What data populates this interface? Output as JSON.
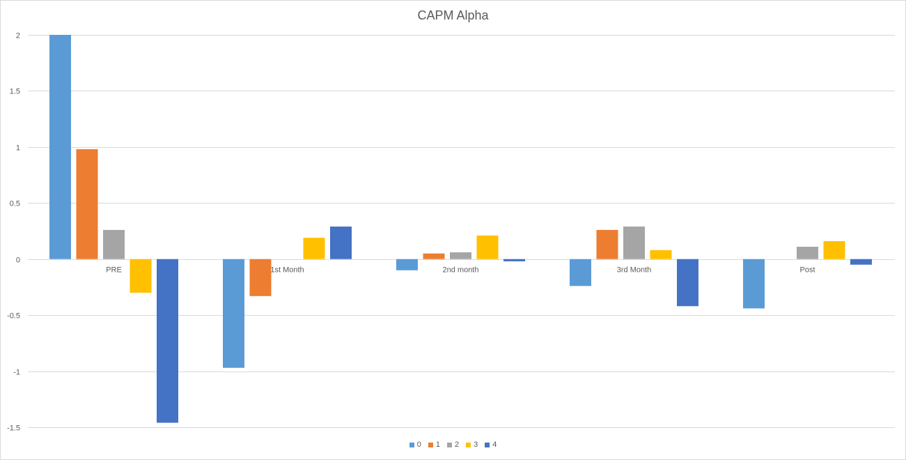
{
  "chart_data": {
    "type": "bar",
    "title": "CAPM Alpha",
    "xlabel": "",
    "ylabel": "",
    "categories": [
      "PRE",
      "1st Month",
      "2nd month",
      "3rd Month",
      "Post"
    ],
    "series": [
      {
        "name": "0",
        "color": "#5B9BD5",
        "values": [
          2.0,
          -0.97,
          -0.1,
          -0.24,
          -0.44
        ]
      },
      {
        "name": "1",
        "color": "#ED7D31",
        "values": [
          0.98,
          -0.33,
          0.05,
          0.26,
          0.0
        ]
      },
      {
        "name": "2",
        "color": "#A5A5A5",
        "values": [
          0.26,
          0.0,
          0.06,
          0.29,
          0.11
        ]
      },
      {
        "name": "3",
        "color": "#FFC000",
        "values": [
          -0.3,
          0.19,
          0.21,
          0.08,
          0.16
        ]
      },
      {
        "name": "4",
        "color": "#4472C4",
        "values": [
          -1.46,
          0.29,
          -0.02,
          -0.42,
          -0.05
        ]
      }
    ],
    "ylim": [
      -1.5,
      2
    ],
    "yticks": [
      2,
      1.5,
      1,
      0.5,
      0,
      -0.5,
      -1,
      -1.5
    ],
    "ytick_labels": [
      "2",
      "1.5",
      "1",
      "0.5",
      "0",
      "-0.5",
      "-1",
      "-1.5"
    ],
    "grid": true,
    "legend_position": "bottom"
  }
}
